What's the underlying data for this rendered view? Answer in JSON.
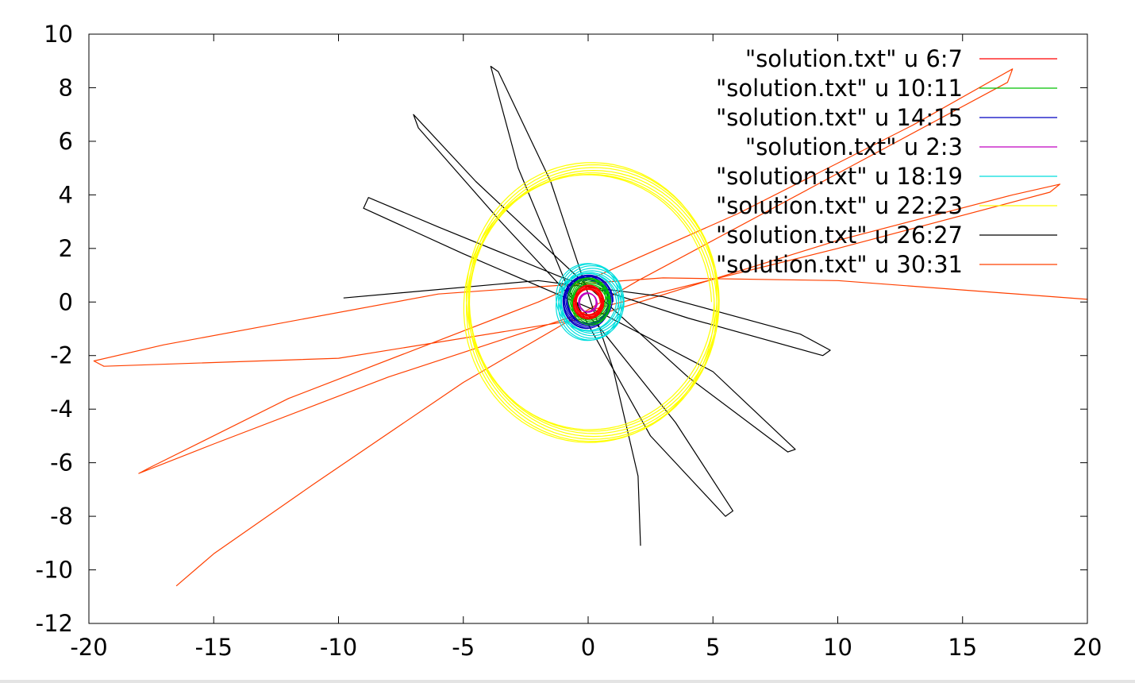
{
  "chart_data": {
    "type": "line",
    "title": "",
    "xlabel": "",
    "ylabel": "",
    "xlim": [
      -20,
      20
    ],
    "ylim": [
      -12,
      10
    ],
    "x_ticks": [
      "-20",
      "-15",
      "-10",
      "-5",
      "0",
      "5",
      "10",
      "15",
      "20"
    ],
    "y_ticks": [
      "10",
      "8",
      "6",
      "4",
      "2",
      "0",
      "-2",
      "-4",
      "-6",
      "-8",
      "-10",
      "-12"
    ],
    "grid": false,
    "legend_position": "top-right",
    "series": [
      {
        "name": "\"solution.txt\" u 6:7",
        "color": "#ff0000",
        "orbit": {
          "a": 0.55,
          "e": 0.15,
          "omega": 40,
          "precession": 30,
          "turns": 8
        }
      },
      {
        "name": "\"solution.txt\" u 10:11",
        "color": "#00c000",
        "orbit": {
          "a": 0.75,
          "e": 0.2,
          "omega": 110,
          "precession": 25,
          "turns": 8
        }
      },
      {
        "name": "\"solution.txt\" u 14:15",
        "color": "#0000c0",
        "orbit": {
          "a": 0.9,
          "e": 0.12,
          "omega": 200,
          "precession": 28,
          "turns": 8
        }
      },
      {
        "name": "\"solution.txt\" u 2:3",
        "color": "#c000c0",
        "orbit": {
          "a": 0.35,
          "e": 0.1,
          "omega": 0,
          "precession": 20,
          "turns": 6
        }
      },
      {
        "name": "\"solution.txt\" u 18:19",
        "color": "#00dede",
        "orbit": {
          "a": 1.25,
          "e": 0.15,
          "omega": 60,
          "precession": 30,
          "turns": 8
        }
      },
      {
        "name": "\"solution.txt\" u 22:23",
        "color": "#ffff00",
        "orbit": {
          "a": 5.0,
          "e": 0.05,
          "omega": 80,
          "precession": 25,
          "turns": 7
        }
      },
      {
        "name": "\"solution.txt\" u 26:27",
        "color": "#000000",
        "points": [
          [
            -9.8,
            0.15
          ],
          [
            -2.0,
            0.8
          ],
          [
            3.0,
            0.2
          ],
          [
            8.5,
            -1.2
          ],
          [
            9.7,
            -1.8
          ],
          [
            9.4,
            -2.0
          ],
          [
            4.0,
            -0.6
          ],
          [
            -1.0,
            0.9
          ],
          [
            -6.0,
            2.8
          ],
          [
            -8.8,
            3.9
          ],
          [
            -9.0,
            3.5
          ],
          [
            -5.0,
            1.8
          ],
          [
            0.5,
            -0.4
          ],
          [
            5.0,
            -2.6
          ],
          [
            8.3,
            -5.5
          ],
          [
            8.0,
            -5.6
          ],
          [
            4.0,
            -2.8
          ],
          [
            -0.5,
            1.0
          ],
          [
            -4.5,
            4.5
          ],
          [
            -7.0,
            7.0
          ],
          [
            -6.8,
            6.5
          ],
          [
            -3.5,
            3.0
          ],
          [
            0.5,
            -1.0
          ],
          [
            3.5,
            -4.5
          ],
          [
            5.8,
            -7.8
          ],
          [
            5.5,
            -8.0
          ],
          [
            2.5,
            -5.0
          ],
          [
            -0.8,
            0.5
          ],
          [
            -2.8,
            5.0
          ],
          [
            -3.9,
            8.8
          ],
          [
            -3.6,
            8.6
          ],
          [
            -1.5,
            4.5
          ],
          [
            1.0,
            -2.5
          ],
          [
            2.0,
            -6.5
          ],
          [
            2.1,
            -9.1
          ]
        ]
      },
      {
        "name": "\"solution.txt\" u 30:31",
        "color": "#ff4000",
        "points": [
          [
            20.0,
            0.1
          ],
          [
            10.0,
            0.8
          ],
          [
            3.0,
            0.9
          ],
          [
            -6.0,
            0.3
          ],
          [
            -17.0,
            -1.6
          ],
          [
            -19.8,
            -2.2
          ],
          [
            -19.4,
            -2.4
          ],
          [
            -10.0,
            -2.1
          ],
          [
            0.0,
            -0.6
          ],
          [
            10.0,
            2.3
          ],
          [
            17.0,
            4.0
          ],
          [
            18.9,
            4.4
          ],
          [
            18.5,
            4.1
          ],
          [
            10.0,
            2.0
          ],
          [
            0.5,
            -0.2
          ],
          [
            -8.0,
            -2.8
          ],
          [
            -15.0,
            -5.3
          ],
          [
            -18.0,
            -6.4
          ],
          [
            -17.6,
            -6.2
          ],
          [
            -12.0,
            -3.6
          ],
          [
            -2.0,
            0.0
          ],
          [
            6.0,
            3.3
          ],
          [
            13.0,
            6.6
          ],
          [
            17.0,
            8.7
          ],
          [
            16.8,
            8.2
          ],
          [
            10.0,
            4.8
          ],
          [
            2.0,
            0.8
          ],
          [
            -5.0,
            -3.0
          ],
          [
            -11.0,
            -6.8
          ],
          [
            -15.0,
            -9.4
          ],
          [
            -16.5,
            -10.6
          ]
        ]
      }
    ]
  }
}
